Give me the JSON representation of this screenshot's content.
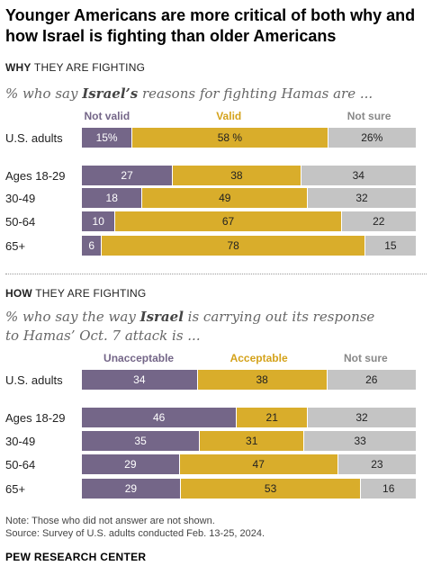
{
  "title": "Younger Americans are more critical of both why and how Israel is fighting than older Americans",
  "chart_data": [
    {
      "type": "bar",
      "stacked": true,
      "orientation": "horizontal",
      "section_label_bold": "WHY",
      "section_label_rest": " THEY ARE FIGHTING",
      "subtitle_pre": "% who say ",
      "subtitle_bold": "Israel’s",
      "subtitle_post": " reasons for fighting Hamas are ...",
      "legend": [
        "Not valid",
        "Valid",
        "Not sure"
      ],
      "colors": [
        "#746688",
        "#d9ad2b",
        "#c4c4c4"
      ],
      "categories": [
        "U.S. adults",
        "Ages 18-29",
        "30-49",
        "50-64",
        "65+"
      ],
      "series": [
        {
          "name": "Not valid",
          "values": [
            15,
            27,
            18,
            10,
            6
          ],
          "labels": [
            "15%",
            "27",
            "18",
            "10",
            "6"
          ]
        },
        {
          "name": "Valid",
          "values": [
            58,
            38,
            49,
            67,
            78
          ],
          "labels": [
            "58 %",
            "38",
            "49",
            "67",
            "78"
          ]
        },
        {
          "name": "Not sure",
          "values": [
            26,
            34,
            32,
            22,
            15
          ],
          "labels": [
            "26%",
            "34",
            "32",
            "22",
            "15"
          ]
        }
      ]
    },
    {
      "type": "bar",
      "stacked": true,
      "orientation": "horizontal",
      "section_label_bold": "HOW",
      "section_label_rest": " THEY ARE FIGHTING",
      "subtitle_pre": "% who say the way ",
      "subtitle_bold": "Israel",
      "subtitle_post": " is carrying out its response to Hamas’ Oct. 7 attack is ...",
      "legend": [
        "Unacceptable",
        "Acceptable",
        "Not sure"
      ],
      "colors": [
        "#746688",
        "#d9ad2b",
        "#c4c4c4"
      ],
      "categories": [
        "U.S. adults",
        "Ages 18-29",
        "30-49",
        "50-64",
        "65+"
      ],
      "series": [
        {
          "name": "Unacceptable",
          "values": [
            34,
            46,
            35,
            29,
            29
          ],
          "labels": [
            "34",
            "46",
            "35",
            "29",
            "29"
          ]
        },
        {
          "name": "Acceptable",
          "values": [
            38,
            21,
            31,
            47,
            53
          ],
          "labels": [
            "38",
            "21",
            "31",
            "47",
            "53"
          ]
        },
        {
          "name": "Not sure",
          "values": [
            26,
            32,
            33,
            23,
            16
          ],
          "labels": [
            "26",
            "32",
            "33",
            "23",
            "16"
          ]
        }
      ]
    }
  ],
  "note": "Note: Those who did not answer are not shown.",
  "source": "Source: Survey of U.S. adults conducted Feb. 13-25, 2024.",
  "brand": "PEW RESEARCH CENTER"
}
